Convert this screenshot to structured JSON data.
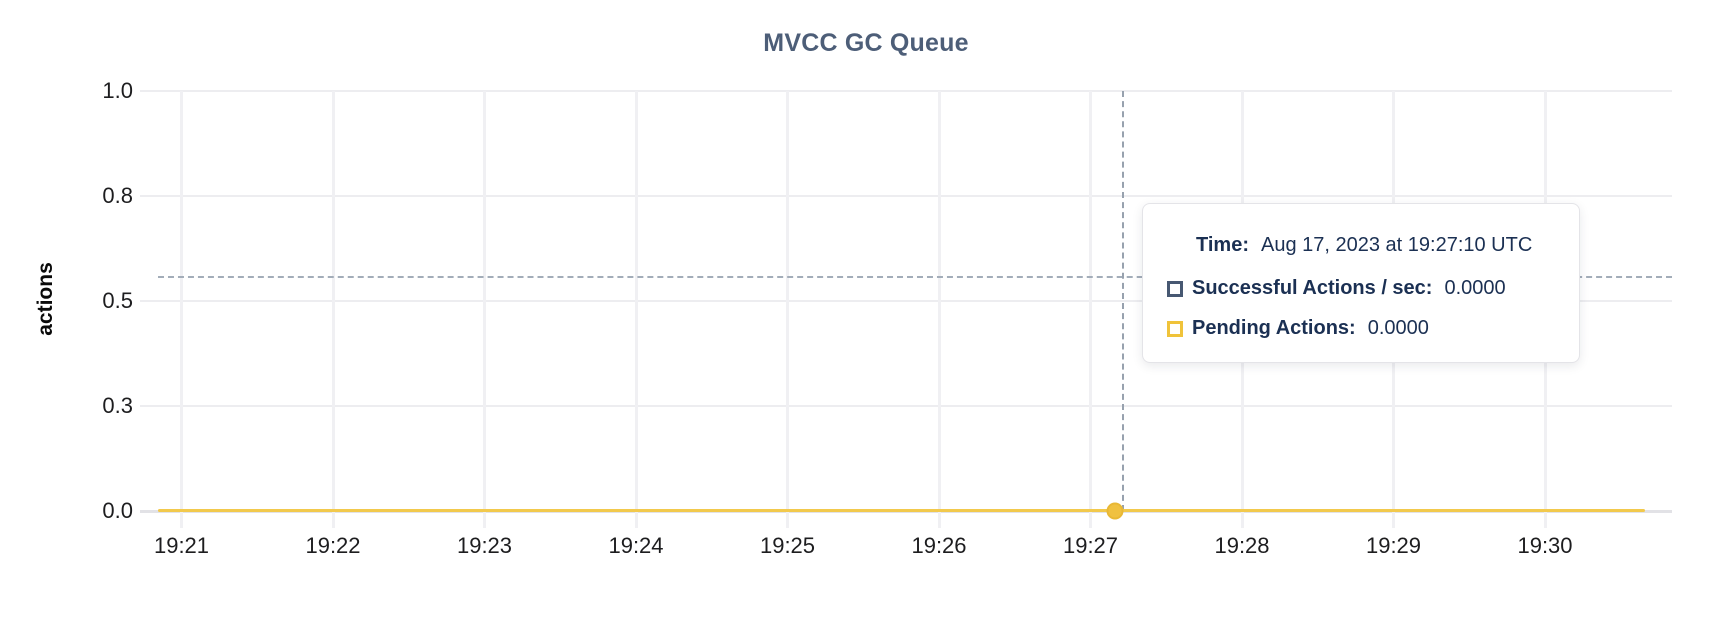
{
  "chart": {
    "title": "MVCC GC Queue",
    "y_axis": {
      "label": "actions",
      "tick_labels": [
        "1.0",
        "0.8",
        "0.5",
        "0.3",
        "0.0"
      ]
    },
    "x_axis": {
      "tick_labels": [
        "19:21",
        "19:22",
        "19:23",
        "19:24",
        "19:25",
        "19:26",
        "19:27",
        "19:28",
        "19:29",
        "19:30"
      ]
    }
  },
  "tooltip": {
    "time_label": "Time:",
    "time_value": "Aug 17, 2023 at 19:27:10 UTC",
    "series": [
      {
        "label": "Successful Actions / sec:",
        "value": "0.0000",
        "color": "#475872"
      },
      {
        "label": "Pending Actions:",
        "value": "0.0000",
        "color": "#f0c33a"
      }
    ]
  },
  "chart_data": {
    "type": "line",
    "title": "MVCC GC Queue",
    "xlabel": "",
    "ylabel": "actions",
    "ylim": [
      0.0,
      1.0
    ],
    "y_ticks": [
      1.0,
      0.8,
      0.5,
      0.3,
      0.0
    ],
    "grid": true,
    "legend_position": "tooltip-only",
    "categories": [
      "19:21",
      "19:22",
      "19:23",
      "19:24",
      "19:25",
      "19:26",
      "19:27",
      "19:28",
      "19:29",
      "19:30"
    ],
    "series": [
      {
        "name": "Successful Actions / sec",
        "color": "#475872",
        "values": [
          0,
          0,
          0,
          0,
          0,
          0,
          0,
          0,
          0,
          0
        ]
      },
      {
        "name": "Pending Actions",
        "color": "#f2c94c",
        "values": [
          0,
          0,
          0,
          0,
          0,
          0,
          0,
          0,
          0,
          0
        ]
      }
    ],
    "hovered_point": {
      "time": "Aug 17, 2023 at 19:27:10 UTC",
      "x": "19:27:10",
      "values": {
        "Successful Actions / sec": 0.0,
        "Pending Actions": 0.0
      }
    }
  }
}
